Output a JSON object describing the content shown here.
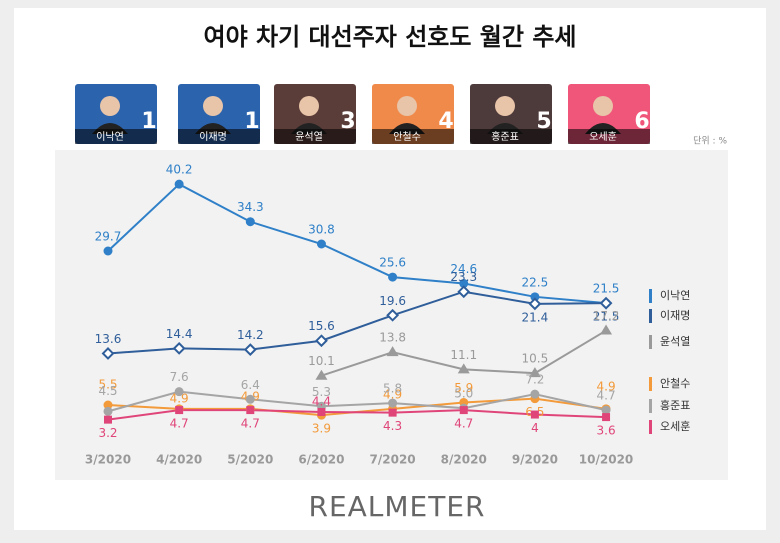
{
  "header": {
    "title": "여야 차기 대선주자 선호도 월간 추세",
    "unit": "단위 : %"
  },
  "candidates": [
    {
      "name": "이낙연",
      "rank": 1,
      "color": "#2b63ad"
    },
    {
      "name": "이재명",
      "rank": 1,
      "color": "#2b63ad"
    },
    {
      "name": "윤석열",
      "rank": 3,
      "color": "#5a3d38"
    },
    {
      "name": "안철수",
      "rank": 4,
      "color": "#f08a4b"
    },
    {
      "name": "홍준표",
      "rank": 5,
      "color": "#4d3a3a"
    },
    {
      "name": "오세훈",
      "rank": 6,
      "color": "#f0557a"
    }
  ],
  "chart_data": {
    "type": "line",
    "categories": [
      "3/2020",
      "4/2020",
      "5/2020",
      "6/2020",
      "7/2020",
      "8/2020",
      "9/2020",
      "10/2020"
    ],
    "ylim": [
      0,
      44
    ],
    "series": [
      {
        "name": "이낙연",
        "color": "#2f80c8",
        "marker": "circle",
        "values": [
          29.7,
          40.2,
          34.3,
          30.8,
          25.6,
          24.6,
          22.5,
          21.5
        ]
      },
      {
        "name": "이재명",
        "color": "#2f5e9a",
        "marker": "diamond",
        "values": [
          13.6,
          14.4,
          14.2,
          15.6,
          19.6,
          23.3,
          21.4,
          21.5
        ]
      },
      {
        "name": "윤석열",
        "color": "#9a9a9a",
        "marker": "triangle",
        "values": [
          null,
          null,
          null,
          10.1,
          13.8,
          11.1,
          10.5,
          17.2
        ]
      },
      {
        "name": "안철수",
        "color": "#f39a3a",
        "marker": "circle",
        "values": [
          5.5,
          4.9,
          4.9,
          3.9,
          4.9,
          5.9,
          6.5,
          4.9
        ]
      },
      {
        "name": "홍준표",
        "color": "#a5a5a5",
        "marker": "circle",
        "values": [
          4.5,
          7.6,
          6.4,
          5.3,
          5.8,
          5.0,
          7.2,
          4.7
        ],
        "value_labels": [
          "4.5",
          "7.6",
          "6.4",
          "5.3",
          "5.8",
          "5.0",
          "7.2",
          "4.7"
        ]
      },
      {
        "name": "오세훈",
        "color": "#e0457a",
        "marker": "square",
        "values": [
          3.2,
          4.7,
          4.7,
          4.4,
          4.3,
          4.7,
          4.0,
          3.6
        ]
      }
    ]
  },
  "footer": {
    "brand": "REALMETER"
  }
}
